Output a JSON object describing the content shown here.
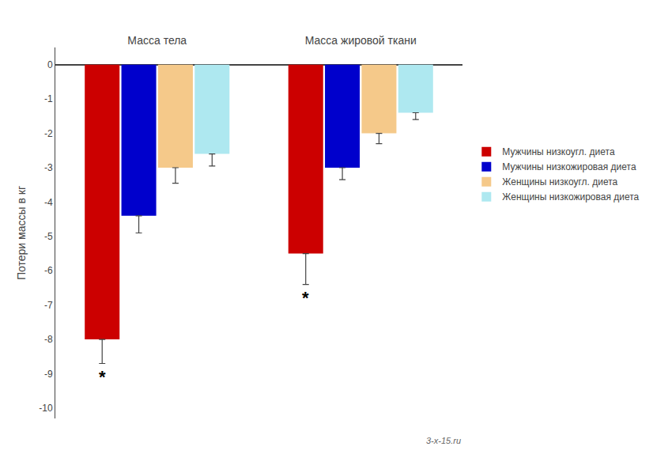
{
  "chart_data": {
    "type": "bar",
    "categories": [
      "Масса тела",
      "Масса жировой ткани"
    ],
    "series": [
      {
        "name": "Мужчины низкоугл. диета",
        "color": "#cc0000",
        "values": [
          -8.0,
          -5.5
        ],
        "errors": [
          0.7,
          0.9
        ]
      },
      {
        "name": "Мужчины низкожировая диета",
        "color": "#0000cc",
        "values": [
          -4.4,
          -3.0
        ],
        "errors": [
          0.5,
          0.35
        ]
      },
      {
        "name": "Женщины низкоугл. диета",
        "color": "#f5c98a",
        "values": [
          -3.0,
          -2.0
        ],
        "errors": [
          0.45,
          0.3
        ]
      },
      {
        "name": "Женщины низкожировая диета",
        "color": "#aee8f0",
        "values": [
          -2.6,
          -1.4
        ],
        "errors": [
          0.35,
          0.2
        ]
      }
    ],
    "ylabel": "Потери массы в кг",
    "ylim": [
      -10.3,
      0.5
    ],
    "yticks": [
      0,
      -1,
      -2,
      -3,
      -4,
      -5,
      -6,
      -7,
      -8,
      -9,
      -10
    ],
    "grid": false,
    "legend": "right",
    "annotations": [
      {
        "text": "*",
        "series": "Мужчины низкоугл. диета",
        "category": "Масса тела"
      },
      {
        "text": "*",
        "series": "Мужчины низкоугл. диета",
        "category": "Масса жировой ткани"
      },
      {
        "text": "3-x-15.ru"
      }
    ]
  }
}
